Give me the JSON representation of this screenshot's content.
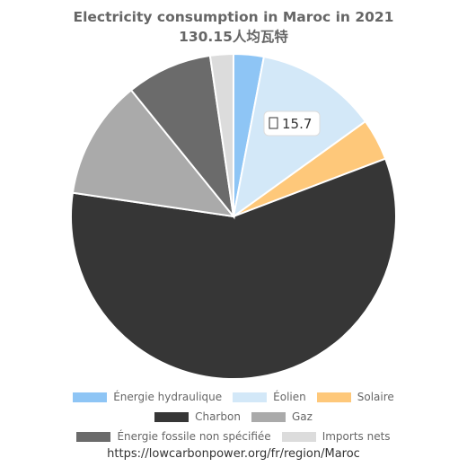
{
  "chart_data": {
    "type": "pie",
    "title": "Electricity consumption in Maroc in 2021",
    "subtitle": "130.15人均瓦特",
    "slices": [
      {
        "name": "Énergie hydraulique",
        "value": 3.9,
        "color": "#8ec5f5"
      },
      {
        "name": "Éolien",
        "value": 15.7,
        "color": "#d3e8f8"
      },
      {
        "name": "Solaire",
        "value": 5.4,
        "color": "#fec87a"
      },
      {
        "name": "Charbon",
        "value": 75.6,
        "color": "#363636"
      },
      {
        "name": "Gaz",
        "value": 15.4,
        "color": "#aaaaaa"
      },
      {
        "name": "Énergie fossile non spécifiée",
        "value": 11.1,
        "color": "#6b6b6b"
      },
      {
        "name": "Imports nets",
        "value": 3.0,
        "color": "#dcdcdc"
      }
    ],
    "annotation": {
      "icon": "wind-icon",
      "text": "15.7"
    },
    "legend_position": "bottom"
  },
  "source": "https://lowcarbonpower.org/fr/region/Maroc"
}
